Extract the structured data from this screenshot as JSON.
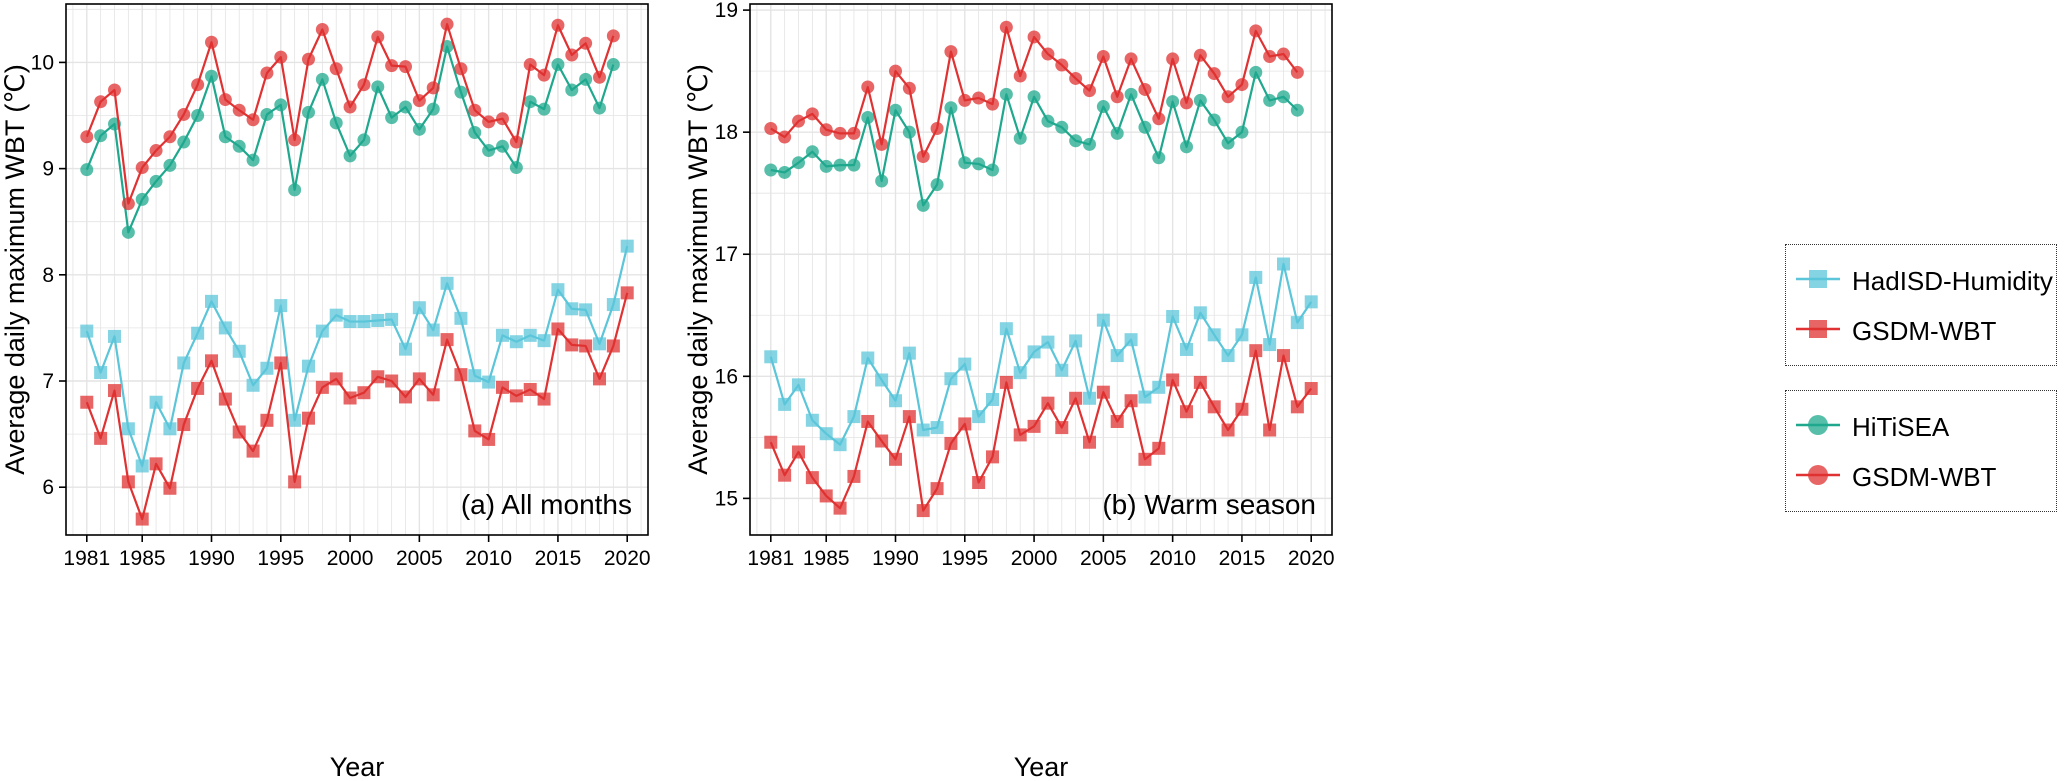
{
  "colors": {
    "hadisd": "#5BC5D9",
    "gsdm_square": "#E03232",
    "hitisea": "#1FA88E",
    "gsdm_circle": "#E03232",
    "grid": "#E4E4E4",
    "axis": "#000000"
  },
  "legend": {
    "group1": [
      {
        "label": "HadISD-Humidity",
        "series": "hadisd",
        "marker": "square"
      },
      {
        "label": "GSDM-WBT",
        "series": "gsdm_square",
        "marker": "square"
      }
    ],
    "group2": [
      {
        "label": "HiTiSEA",
        "series": "hitisea",
        "marker": "circle"
      },
      {
        "label": "GSDM-WBT",
        "series": "gsdm_circle",
        "marker": "circle"
      }
    ]
  },
  "chart_data": [
    {
      "type": "line",
      "title": "(a) All months",
      "xlabel": "Year",
      "ylabel": "Average daily maximum WBT (℃)",
      "xlim": [
        1979.5,
        2021.5
      ],
      "ylim": [
        5.55,
        10.55
      ],
      "xticks": [
        1981,
        1985,
        1990,
        1995,
        2000,
        2005,
        2010,
        2015,
        2020
      ],
      "yticks": [
        6,
        7,
        8,
        9,
        10
      ],
      "series": [
        {
          "name": "HiTiSEA",
          "marker": "circle",
          "color_key": "hitisea",
          "x_start": 1981,
          "values": [
            8.99,
            9.31,
            9.42,
            8.4,
            8.71,
            8.88,
            9.03,
            9.25,
            9.5,
            9.87,
            9.3,
            9.21,
            9.08,
            9.51,
            9.6,
            8.8,
            9.53,
            9.84,
            9.43,
            9.12,
            9.27,
            9.77,
            9.48,
            9.58,
            9.37,
            9.56,
            10.15,
            9.72,
            9.34,
            9.17,
            9.21,
            9.01,
            9.63,
            9.56,
            9.98,
            9.74,
            9.84,
            9.57,
            9.98
          ]
        },
        {
          "name": "GSDM-WBT",
          "marker": "circle",
          "color_key": "gsdm_circle",
          "x_start": 1981,
          "values": [
            9.3,
            9.63,
            9.74,
            8.67,
            9.01,
            9.17,
            9.3,
            9.51,
            9.79,
            10.19,
            9.65,
            9.55,
            9.46,
            9.9,
            10.05,
            9.27,
            10.03,
            10.31,
            9.94,
            9.58,
            9.79,
            10.24,
            9.97,
            9.96,
            9.64,
            9.76,
            10.36,
            9.94,
            9.55,
            9.44,
            9.47,
            9.25,
            9.98,
            9.88,
            10.35,
            10.07,
            10.18,
            9.86,
            10.25
          ]
        },
        {
          "name": "HadISD-Humidity",
          "marker": "square",
          "color_key": "hadisd",
          "x_start": 1981,
          "values": [
            7.47,
            7.08,
            7.42,
            6.55,
            6.2,
            6.8,
            6.55,
            7.17,
            7.45,
            7.75,
            7.5,
            7.28,
            6.96,
            7.12,
            7.71,
            6.63,
            7.14,
            7.47,
            7.62,
            7.56,
            7.56,
            7.57,
            7.58,
            7.3,
            7.69,
            7.48,
            7.92,
            7.59,
            7.05,
            6.99,
            7.43,
            7.37,
            7.43,
            7.38,
            7.86,
            7.68,
            7.67,
            7.35,
            7.72,
            8.27
          ]
        },
        {
          "name": "GSDM-WBT",
          "marker": "square",
          "color_key": "gsdm_square",
          "x_start": 1981,
          "values": [
            6.8,
            6.46,
            6.91,
            6.05,
            5.7,
            6.22,
            5.99,
            6.59,
            6.93,
            7.19,
            6.83,
            6.52,
            6.34,
            6.63,
            7.17,
            6.05,
            6.65,
            6.94,
            7.02,
            6.84,
            6.89,
            7.04,
            7.0,
            6.85,
            7.02,
            6.87,
            7.39,
            7.06,
            6.53,
            6.45,
            6.94,
            6.86,
            6.92,
            6.83,
            7.49,
            7.34,
            7.33,
            7.02,
            7.33,
            7.83
          ]
        }
      ]
    },
    {
      "type": "line",
      "title": "(b) Warm season",
      "xlabel": "Year",
      "ylabel": "Average daily maximum WBT (℃)",
      "xlim": [
        1979.5,
        2021.5
      ],
      "ylim": [
        14.7,
        19.05
      ],
      "xticks": [
        1981,
        1985,
        1990,
        1995,
        2000,
        2005,
        2010,
        2015,
        2020
      ],
      "yticks": [
        15,
        16,
        17,
        18,
        19
      ],
      "series": [
        {
          "name": "HiTiSEA",
          "marker": "circle",
          "color_key": "hitisea",
          "x_start": 1981,
          "values": [
            17.69,
            17.67,
            17.75,
            17.84,
            17.72,
            17.73,
            17.73,
            18.12,
            17.6,
            18.18,
            18.0,
            17.4,
            17.57,
            18.2,
            17.75,
            17.74,
            17.69,
            18.31,
            17.95,
            18.29,
            18.09,
            18.04,
            17.93,
            17.9,
            18.21,
            17.99,
            18.31,
            18.04,
            17.79,
            18.25,
            17.88,
            18.26,
            18.1,
            17.91,
            18.0,
            18.49,
            18.26,
            18.29,
            18.18
          ]
        },
        {
          "name": "GSDM-WBT",
          "marker": "circle",
          "color_key": "gsdm_circle",
          "x_start": 1981,
          "values": [
            18.03,
            17.96,
            18.09,
            18.15,
            18.02,
            17.99,
            17.99,
            18.37,
            17.9,
            18.5,
            18.36,
            17.8,
            18.03,
            18.66,
            18.26,
            18.28,
            18.23,
            18.86,
            18.46,
            18.78,
            18.64,
            18.55,
            18.44,
            18.34,
            18.62,
            18.29,
            18.6,
            18.35,
            18.11,
            18.6,
            18.24,
            18.63,
            18.48,
            18.29,
            18.39,
            18.83,
            18.62,
            18.64,
            18.49
          ]
        },
        {
          "name": "HadISD-Humidity",
          "marker": "square",
          "color_key": "hadisd",
          "x_start": 1981,
          "values": [
            16.16,
            15.77,
            15.93,
            15.64,
            15.53,
            15.44,
            15.67,
            16.15,
            15.97,
            15.8,
            16.19,
            15.56,
            15.58,
            15.98,
            16.1,
            15.67,
            15.81,
            16.39,
            16.03,
            16.2,
            16.28,
            16.05,
            16.29,
            15.82,
            16.46,
            16.17,
            16.3,
            15.83,
            15.91,
            16.49,
            16.22,
            16.52,
            16.34,
            16.17,
            16.34,
            16.81,
            16.26,
            16.92,
            16.44,
            16.61
          ]
        },
        {
          "name": "GSDM-WBT",
          "marker": "square",
          "color_key": "gsdm_square",
          "x_start": 1981,
          "values": [
            15.46,
            15.19,
            15.38,
            15.17,
            15.02,
            14.92,
            15.18,
            15.63,
            15.47,
            15.32,
            15.67,
            14.9,
            15.08,
            15.45,
            15.61,
            15.13,
            15.34,
            15.95,
            15.52,
            15.59,
            15.78,
            15.58,
            15.82,
            15.46,
            15.87,
            15.63,
            15.8,
            15.32,
            15.41,
            15.97,
            15.71,
            15.95,
            15.75,
            15.56,
            15.73,
            16.21,
            15.56,
            16.17,
            15.75,
            15.9
          ]
        }
      ]
    }
  ]
}
